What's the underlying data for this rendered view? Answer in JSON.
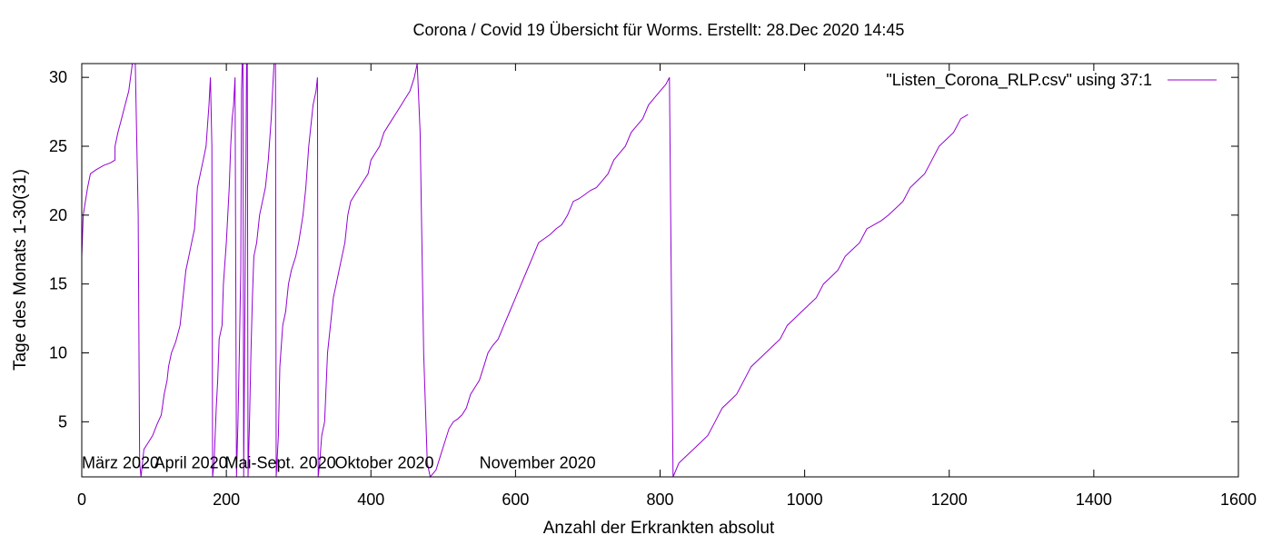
{
  "chart_data": {
    "type": "line",
    "title": "Corona / Covid 19 Übersicht für Worms. Erstellt: 28.Dec 2020 14:45",
    "xlabel": "Anzahl der Erkrankten absolut",
    "ylabel": "Tage des Monats 1-30(31)",
    "xlim": [
      0,
      1600
    ],
    "ylim": [
      1,
      31
    ],
    "xticks": [
      0,
      200,
      400,
      600,
      800,
      1000,
      1200,
      1400,
      1600
    ],
    "yticks": [
      5,
      10,
      15,
      20,
      25,
      30
    ],
    "grid": false,
    "legend_position": "top-right",
    "annotations": [
      {
        "text": "März 2020",
        "x": 0,
        "y": 1.5
      },
      {
        "text": "April 2020",
        "x": 100,
        "y": 1.5
      },
      {
        "text": "Mai-Sept. 2020",
        "x": 198,
        "y": 1.5
      },
      {
        "text": "Oktober 2020",
        "x": 350,
        "y": 1.5
      },
      {
        "text": "November 2020",
        "x": 550,
        "y": 1.5
      }
    ],
    "series": [
      {
        "name": "\"Listen_Corona_RLP.csv\" using 37:1",
        "color": "#9400d3",
        "points": [
          [
            0,
            17
          ],
          [
            2,
            20
          ],
          [
            5,
            21
          ],
          [
            8,
            22
          ],
          [
            12,
            23
          ],
          [
            20,
            23.3
          ],
          [
            30,
            23.6
          ],
          [
            40,
            23.8
          ],
          [
            46,
            24
          ],
          [
            46,
            25
          ],
          [
            50,
            26
          ],
          [
            55,
            27
          ],
          [
            60,
            28
          ],
          [
            65,
            29
          ],
          [
            70,
            31
          ],
          [
            74,
            31
          ],
          [
            78,
            20
          ],
          [
            80,
            2
          ],
          [
            82,
            1
          ],
          [
            86,
            3
          ],
          [
            92,
            3.5
          ],
          [
            98,
            4
          ],
          [
            104,
            4.8
          ],
          [
            110,
            5.5
          ],
          [
            114,
            7
          ],
          [
            118,
            8
          ],
          [
            120,
            9
          ],
          [
            124,
            10
          ],
          [
            130,
            10.8
          ],
          [
            136,
            12
          ],
          [
            140,
            14
          ],
          [
            144,
            16
          ],
          [
            148,
            17
          ],
          [
            152,
            18
          ],
          [
            156,
            19
          ],
          [
            160,
            22
          ],
          [
            164,
            23
          ],
          [
            168,
            24
          ],
          [
            172,
            25
          ],
          [
            176,
            28
          ],
          [
            178,
            30
          ],
          [
            180,
            25
          ],
          [
            181,
            1
          ],
          [
            183,
            2
          ],
          [
            186,
            6
          ],
          [
            188,
            8
          ],
          [
            190,
            11
          ],
          [
            194,
            12
          ],
          [
            196,
            15
          ],
          [
            200,
            18
          ],
          [
            202,
            20
          ],
          [
            204,
            22
          ],
          [
            206,
            25
          ],
          [
            208,
            27
          ],
          [
            210,
            28
          ],
          [
            212,
            30
          ],
          [
            214,
            1
          ],
          [
            216,
            5
          ],
          [
            218,
            10
          ],
          [
            220,
            16
          ],
          [
            221,
            29
          ],
          [
            222,
            31
          ],
          [
            223,
            31
          ],
          [
            224,
            1
          ],
          [
            226,
            15
          ],
          [
            228,
            31
          ],
          [
            229,
            31
          ],
          [
            230,
            1
          ],
          [
            232,
            5
          ],
          [
            234,
            10
          ],
          [
            236,
            14
          ],
          [
            238,
            17
          ],
          [
            242,
            18
          ],
          [
            246,
            20
          ],
          [
            250,
            21
          ],
          [
            254,
            22
          ],
          [
            258,
            24
          ],
          [
            262,
            27
          ],
          [
            264,
            29
          ],
          [
            266,
            31
          ],
          [
            268,
            31
          ],
          [
            269,
            1
          ],
          [
            272,
            4
          ],
          [
            274,
            9
          ],
          [
            278,
            12
          ],
          [
            282,
            13
          ],
          [
            286,
            15
          ],
          [
            290,
            16
          ],
          [
            296,
            17
          ],
          [
            300,
            18
          ],
          [
            306,
            20
          ],
          [
            310,
            22
          ],
          [
            314,
            25
          ],
          [
            318,
            27
          ],
          [
            320,
            28
          ],
          [
            324,
            29
          ],
          [
            326,
            30
          ],
          [
            327,
            1
          ],
          [
            329,
            2
          ],
          [
            332,
            4
          ],
          [
            336,
            5
          ],
          [
            340,
            10
          ],
          [
            344,
            12
          ],
          [
            348,
            14
          ],
          [
            352,
            15
          ],
          [
            356,
            16
          ],
          [
            360,
            17
          ],
          [
            364,
            18
          ],
          [
            368,
            20
          ],
          [
            372,
            21
          ],
          [
            378,
            21.5
          ],
          [
            384,
            22
          ],
          [
            390,
            22.5
          ],
          [
            396,
            23
          ],
          [
            400,
            24
          ],
          [
            406,
            24.5
          ],
          [
            412,
            25
          ],
          [
            418,
            26
          ],
          [
            424,
            26.5
          ],
          [
            430,
            27
          ],
          [
            436,
            27.5
          ],
          [
            442,
            28
          ],
          [
            448,
            28.5
          ],
          [
            454,
            29
          ],
          [
            460,
            30
          ],
          [
            464,
            31
          ],
          [
            468,
            26
          ],
          [
            473,
            10
          ],
          [
            478,
            2
          ],
          [
            482,
            1
          ],
          [
            490,
            1.5
          ],
          [
            496,
            2.5
          ],
          [
            502,
            3.5
          ],
          [
            508,
            4.5
          ],
          [
            514,
            5
          ],
          [
            520,
            5.2
          ],
          [
            526,
            5.5
          ],
          [
            532,
            6
          ],
          [
            538,
            7
          ],
          [
            544,
            7.5
          ],
          [
            550,
            8
          ],
          [
            556,
            9
          ],
          [
            562,
            10
          ],
          [
            568,
            10.5
          ],
          [
            576,
            11
          ],
          [
            584,
            12
          ],
          [
            592,
            13
          ],
          [
            600,
            14
          ],
          [
            608,
            15
          ],
          [
            616,
            16
          ],
          [
            624,
            17
          ],
          [
            632,
            18
          ],
          [
            640,
            18.3
          ],
          [
            648,
            18.6
          ],
          [
            656,
            19
          ],
          [
            664,
            19.3
          ],
          [
            672,
            20
          ],
          [
            680,
            21
          ],
          [
            688,
            21.2
          ],
          [
            696,
            21.5
          ],
          [
            704,
            21.8
          ],
          [
            712,
            22
          ],
          [
            720,
            22.5
          ],
          [
            728,
            23
          ],
          [
            736,
            24
          ],
          [
            744,
            24.5
          ],
          [
            752,
            25
          ],
          [
            760,
            26
          ],
          [
            768,
            26.5
          ],
          [
            776,
            27
          ],
          [
            784,
            28
          ],
          [
            792,
            28.5
          ],
          [
            800,
            29
          ],
          [
            808,
            29.5
          ],
          [
            813,
            30
          ],
          [
            818,
            1
          ],
          [
            826,
            2
          ],
          [
            836,
            2.5
          ],
          [
            846,
            3
          ],
          [
            856,
            3.5
          ],
          [
            866,
            4
          ],
          [
            876,
            5
          ],
          [
            886,
            6
          ],
          [
            896,
            6.5
          ],
          [
            906,
            7
          ],
          [
            916,
            8
          ],
          [
            926,
            9
          ],
          [
            936,
            9.5
          ],
          [
            946,
            10
          ],
          [
            956,
            10.5
          ],
          [
            966,
            11
          ],
          [
            976,
            12
          ],
          [
            986,
            12.5
          ],
          [
            996,
            13
          ],
          [
            1006,
            13.5
          ],
          [
            1016,
            14
          ],
          [
            1026,
            15
          ],
          [
            1036,
            15.5
          ],
          [
            1046,
            16
          ],
          [
            1056,
            17
          ],
          [
            1066,
            17.5
          ],
          [
            1076,
            18
          ],
          [
            1086,
            19
          ],
          [
            1096,
            19.3
          ],
          [
            1106,
            19.6
          ],
          [
            1116,
            20
          ],
          [
            1126,
            20.5
          ],
          [
            1136,
            21
          ],
          [
            1146,
            22
          ],
          [
            1156,
            22.5
          ],
          [
            1166,
            23
          ],
          [
            1176,
            24
          ],
          [
            1186,
            25
          ],
          [
            1196,
            25.5
          ],
          [
            1206,
            26
          ],
          [
            1216,
            27
          ],
          [
            1226,
            27.3
          ]
        ]
      }
    ]
  }
}
